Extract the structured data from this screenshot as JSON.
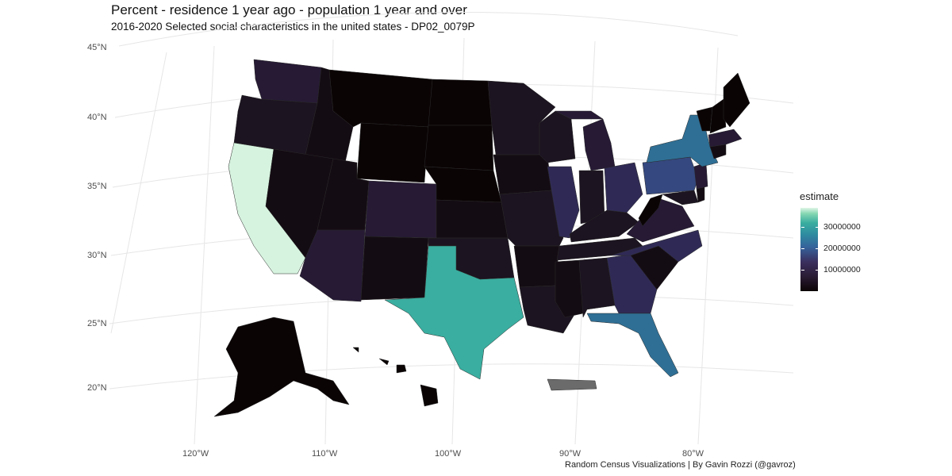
{
  "title": "Percent - residence 1 year ago - population 1 year and over",
  "subtitle": "2016-2020 Selected social characteristics in the united states - DP02_0079P",
  "caption": "Random Census Visualizations | By Gavin Rozzi (@gavroz)",
  "lat_labels": [
    "45°N",
    "40°N",
    "35°N",
    "30°N",
    "25°N",
    "20°N"
  ],
  "lon_labels": [
    "120°W",
    "110°W",
    "100°W",
    "90°W",
    "80°W"
  ],
  "legend": {
    "title": "estimate",
    "ticks": [
      "30000000",
      "20000000",
      "10000000"
    ]
  },
  "colors": {
    "very_low": "#0b0405",
    "low": "#140c13",
    "low_mid": "#1c1420",
    "mid_low": "#261a35",
    "mid": "#2f2a55",
    "mid_high": "#35487f",
    "high_blue": "#2f6f95",
    "high_teal": "#2e8ba0",
    "texas": "#3aaea0",
    "california": "#d6f3df",
    "no_data": "#6b6b6b"
  }
}
